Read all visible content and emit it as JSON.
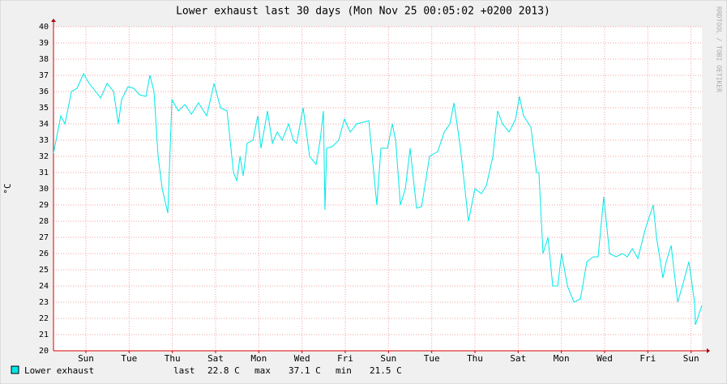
{
  "chart_data": {
    "type": "line",
    "title": "Lower exhaust last 30 days (Mon Nov 25 00:05:02 +0200 2013)",
    "ylabel": "°C",
    "watermark": "RRDTOOL / TOBI OETIKER",
    "xlim": [
      0,
      30
    ],
    "xticks": [
      {
        "value": 1.5,
        "label": "Sun"
      },
      {
        "value": 3.5,
        "label": "Tue"
      },
      {
        "value": 5.5,
        "label": "Thu"
      },
      {
        "value": 7.5,
        "label": "Sat"
      },
      {
        "value": 9.5,
        "label": "Mon"
      },
      {
        "value": 11.5,
        "label": "Wed"
      },
      {
        "value": 13.5,
        "label": "Fri"
      },
      {
        "value": 15.5,
        "label": "Sun"
      },
      {
        "value": 17.5,
        "label": "Tue"
      },
      {
        "value": 19.5,
        "label": "Thu"
      },
      {
        "value": 21.5,
        "label": "Sat"
      },
      {
        "value": 23.5,
        "label": "Mon"
      },
      {
        "value": 25.5,
        "label": "Wed"
      },
      {
        "value": 27.5,
        "label": "Fri"
      },
      {
        "value": 29.5,
        "label": "Sun"
      }
    ],
    "ylim": [
      20,
      40
    ],
    "yticks": [
      20,
      21,
      22,
      23,
      24,
      25,
      26,
      27,
      28,
      29,
      30,
      31,
      32,
      33,
      34,
      35,
      36,
      37,
      38,
      39,
      40
    ],
    "grid": true,
    "x": [
      0,
      0.34,
      0.53,
      0.83,
      1.09,
      1.39,
      1.65,
      1.95,
      2.18,
      2.48,
      2.78,
      3.0,
      3.15,
      3.45,
      3.71,
      3.98,
      4.28,
      4.46,
      4.65,
      4.84,
      5.03,
      5.29,
      5.48,
      5.78,
      6.08,
      6.38,
      6.71,
      7.09,
      7.43,
      7.73,
      8.03,
      8.33,
      8.48,
      8.63,
      8.78,
      8.96,
      9.23,
      9.45,
      9.6,
      9.9,
      10.13,
      10.35,
      10.58,
      10.88,
      11.1,
      11.25,
      11.55,
      11.85,
      12.15,
      12.34,
      12.49,
      12.56,
      12.64,
      12.9,
      13.2,
      13.46,
      13.73,
      14.03,
      14.59,
      14.96,
      15.15,
      15.45,
      15.68,
      15.83,
      16.05,
      16.28,
      16.5,
      16.8,
      17.03,
      17.4,
      17.78,
      18.08,
      18.34,
      18.53,
      18.83,
      19.2,
      19.5,
      19.8,
      20.03,
      20.33,
      20.55,
      20.78,
      21.08,
      21.38,
      21.56,
      21.75,
      22.09,
      22.35,
      22.46,
      22.65,
      22.88,
      23.1,
      23.33,
      23.51,
      23.78,
      24.08,
      24.38,
      24.68,
      24.98,
      25.2,
      25.46,
      25.73,
      26.03,
      26.33,
      26.55,
      26.78,
      27.04,
      27.38,
      27.75,
      27.9,
      28.2,
      28.35,
      28.58,
      28.88,
      29.1,
      29.4,
      29.66,
      29.7,
      30
    ],
    "series": [
      {
        "name": "Lower exhaust",
        "color": "#00e8e8",
        "values": [
          32.2,
          34.5,
          34,
          36,
          36.2,
          37.1,
          36.5,
          36,
          35.6,
          36.5,
          36,
          34,
          35.5,
          36.3,
          36.2,
          35.8,
          35.7,
          37,
          36,
          32,
          30,
          28.5,
          35.5,
          34.8,
          35.2,
          34.6,
          35.3,
          34.5,
          36.5,
          35,
          34.8,
          31,
          30.5,
          32,
          30.8,
          32.8,
          33,
          34.5,
          32.5,
          34.8,
          32.8,
          33.5,
          33,
          34,
          33,
          32.8,
          35,
          32,
          31.5,
          33,
          34.8,
          28.7,
          32.5,
          32.6,
          33,
          34.3,
          33.5,
          34,
          34.2,
          29,
          32.5,
          32.5,
          34,
          33,
          29,
          30,
          32.5,
          28.8,
          28.9,
          32,
          32.3,
          33.5,
          34,
          35.3,
          32.5,
          28,
          30,
          29.7,
          30.2,
          32,
          34.8,
          34,
          33.5,
          34.3,
          35.7,
          34.5,
          33.8,
          31,
          31,
          26,
          27,
          24,
          24,
          26,
          24,
          23,
          23.2,
          25.5,
          25.8,
          25.8,
          29.5,
          26,
          25.8,
          26,
          25.8,
          26.3,
          25.7,
          27.5,
          29,
          27,
          24.5,
          25.5,
          26.5,
          23,
          24,
          25.5,
          23,
          21.6,
          22.8
        ]
      }
    ],
    "stats": [
      {
        "name": "last",
        "value": 22.8,
        "label": "22.8 C"
      },
      {
        "name": "max",
        "value": 37.1,
        "label": "37.1 C"
      },
      {
        "name": "min",
        "value": 21.5,
        "label": "21.5 C"
      }
    ]
  }
}
